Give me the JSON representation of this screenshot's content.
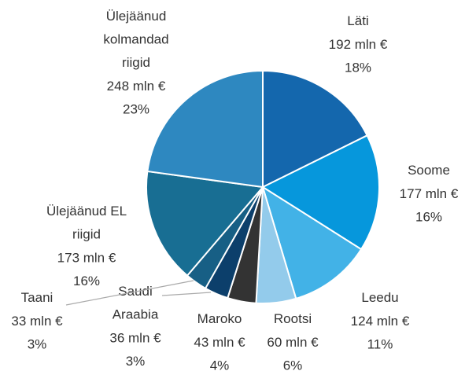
{
  "chart_data": {
    "type": "pie",
    "categories": [
      "Läti",
      "Soome",
      "Leedu",
      "Rootsi",
      "Maroko",
      "Saudi\nAraabia",
      "Taani",
      "Ülejäänud EL\nriigid",
      "Ülejäänud\nkolmandad\nriigid"
    ],
    "values": [
      192,
      177,
      124,
      60,
      43,
      36,
      33,
      173,
      248
    ],
    "value_labels": [
      "192 mln €",
      "177 mln €",
      "124 mln €",
      "60 mln €",
      "43 mln €",
      "36 mln €",
      "33 mln €",
      "173 mln €",
      "248 mln €"
    ],
    "shares": [
      18,
      16,
      11,
      6,
      4,
      3,
      3,
      16,
      23
    ],
    "share_labels": [
      "18%",
      "16%",
      "11%",
      "6%",
      "4%",
      "3%",
      "3%",
      "16%",
      "23%"
    ],
    "colors": [
      "#1467ad",
      "#0697dc",
      "#42b2e7",
      "#93cbeb",
      "#333333",
      "#0c3f6b",
      "#175f85",
      "#186e93",
      "#2e88c0"
    ]
  }
}
